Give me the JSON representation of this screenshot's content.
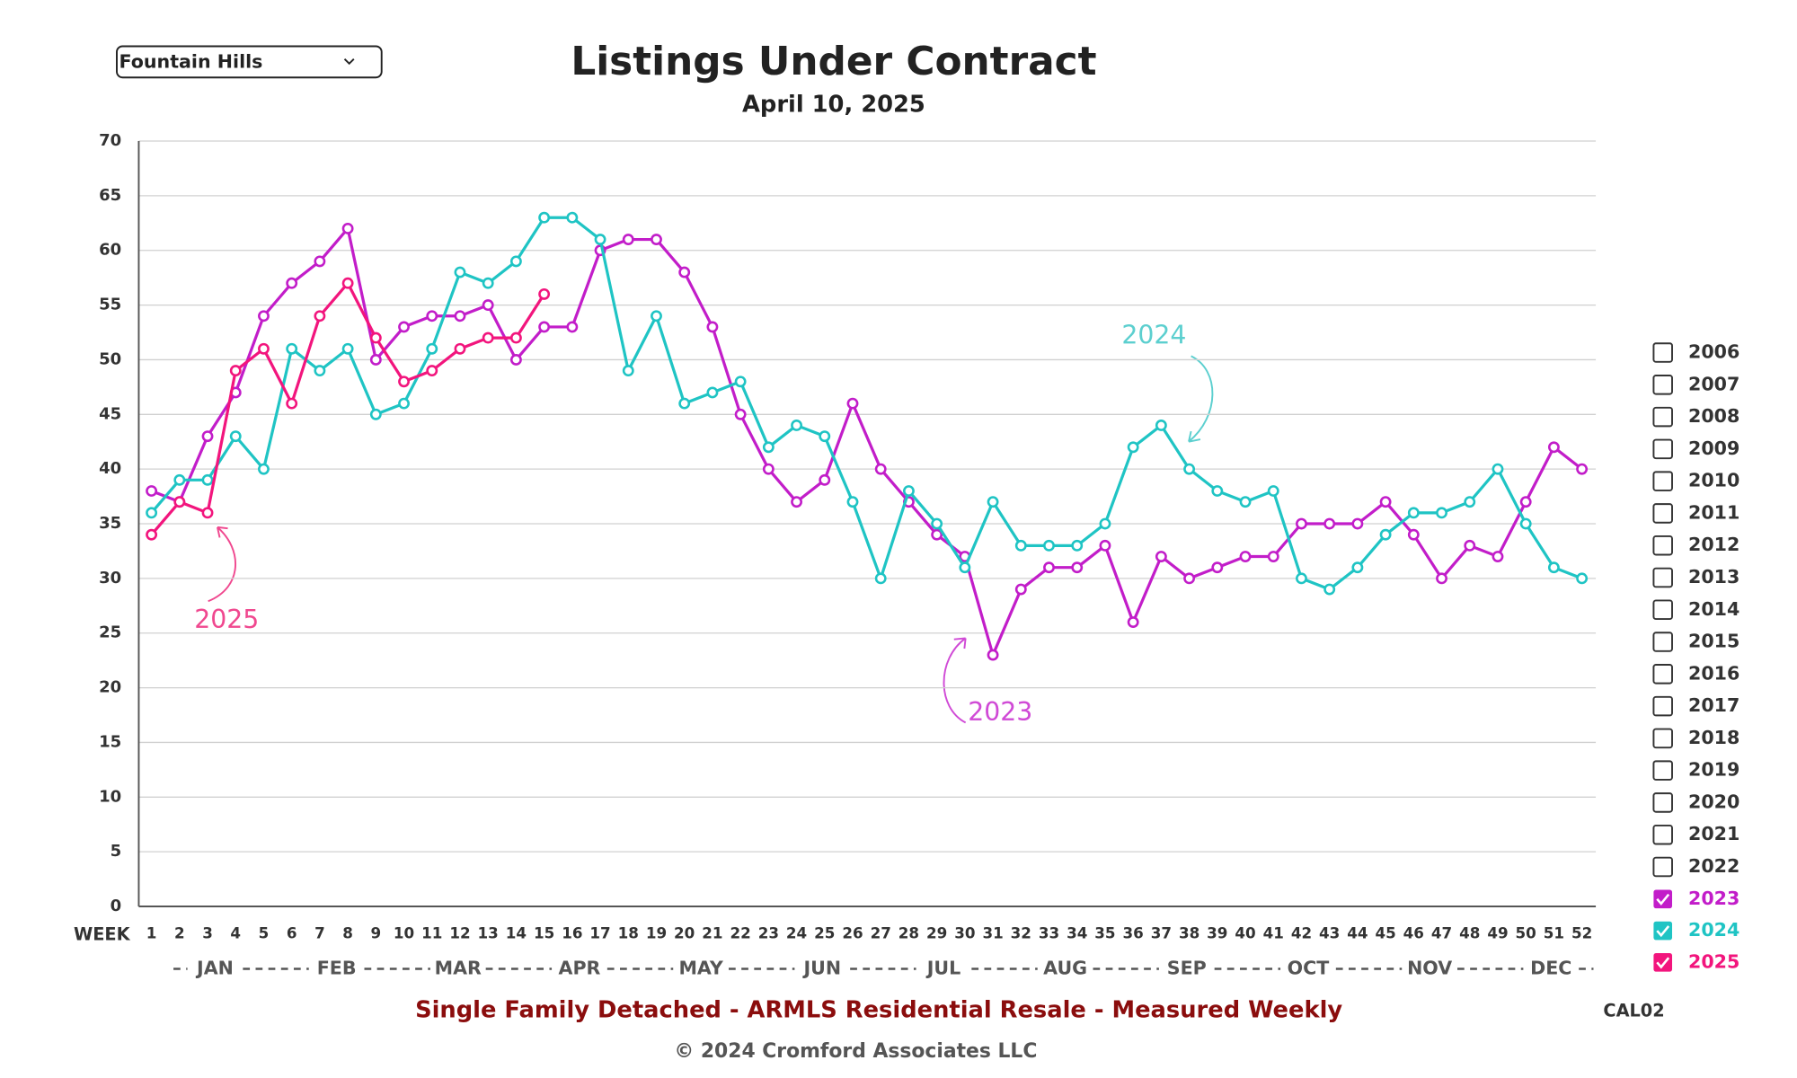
{
  "region_select": "Fountain Hills",
  "chart_data": {
    "type": "line",
    "title": "Listings Under Contract",
    "subtitle": "April 10, 2025",
    "x_label": "WEEK",
    "categories": [
      1,
      2,
      3,
      4,
      5,
      6,
      7,
      8,
      9,
      10,
      11,
      12,
      13,
      14,
      15,
      16,
      17,
      18,
      19,
      20,
      21,
      22,
      23,
      24,
      25,
      26,
      27,
      28,
      29,
      30,
      31,
      32,
      33,
      34,
      35,
      36,
      37,
      38,
      39,
      40,
      41,
      42,
      43,
      44,
      45,
      46,
      47,
      48,
      49,
      50,
      51,
      52
    ],
    "months": [
      "JAN",
      "FEB",
      "MAR",
      "APR",
      "MAY",
      "JUN",
      "JUL",
      "AUG",
      "SEP",
      "OCT",
      "NOV",
      "DEC"
    ],
    "ylim": [
      0,
      70
    ],
    "yticks": [
      0,
      5,
      10,
      15,
      20,
      25,
      30,
      35,
      40,
      45,
      50,
      55,
      60,
      65,
      70
    ],
    "grid": true,
    "series": [
      {
        "name": "2023",
        "color": "#c21dc9",
        "values": [
          38,
          37,
          43,
          47,
          54,
          57,
          59,
          62,
          50,
          53,
          54,
          54,
          55,
          50,
          53,
          53,
          60,
          61,
          61,
          58,
          53,
          45,
          40,
          37,
          39,
          46,
          40,
          37,
          34,
          32,
          23,
          29,
          31,
          31,
          33,
          26,
          32,
          30,
          31,
          32,
          32,
          35,
          35,
          35,
          37,
          34,
          30,
          33,
          32,
          37,
          42,
          40
        ]
      },
      {
        "name": "2024",
        "color": "#1fc4c4",
        "values": [
          36,
          39,
          39,
          43,
          40,
          51,
          49,
          51,
          45,
          46,
          51,
          58,
          57,
          59,
          63,
          63,
          61,
          49,
          54,
          46,
          47,
          48,
          42,
          44,
          43,
          37,
          30,
          38,
          35,
          31,
          37,
          33,
          33,
          33,
          35,
          42,
          44,
          40,
          38,
          37,
          38,
          30,
          29,
          31,
          34,
          36,
          36,
          37,
          40,
          35,
          31,
          30
        ]
      },
      {
        "name": "2025",
        "color": "#f2157d",
        "values": [
          34,
          37,
          36,
          49,
          51,
          46,
          54,
          57,
          52,
          48,
          49,
          51,
          52,
          52,
          56,
          null,
          null,
          null,
          null,
          null,
          null,
          null,
          null,
          null,
          null,
          null,
          null,
          null,
          null,
          null,
          null,
          null,
          null,
          null,
          null,
          null,
          null,
          null,
          null,
          null,
          null,
          null,
          null,
          null,
          null,
          null,
          null,
          null,
          null,
          null,
          null,
          null
        ]
      }
    ],
    "annotations": [
      "2024",
      "2023",
      "2025"
    ],
    "unselected_years": [
      "2006",
      "2007",
      "2008",
      "2009",
      "2010",
      "2011",
      "2012",
      "2013",
      "2014",
      "2015",
      "2016",
      "2017",
      "2018",
      "2019",
      "2020",
      "2021",
      "2022"
    ],
    "footer": "Single Family Detached - ARMLS Residential Resale - Measured Weekly",
    "chart_code": "CAL02",
    "copyright": "© 2024 Cromford Associates LLC"
  }
}
